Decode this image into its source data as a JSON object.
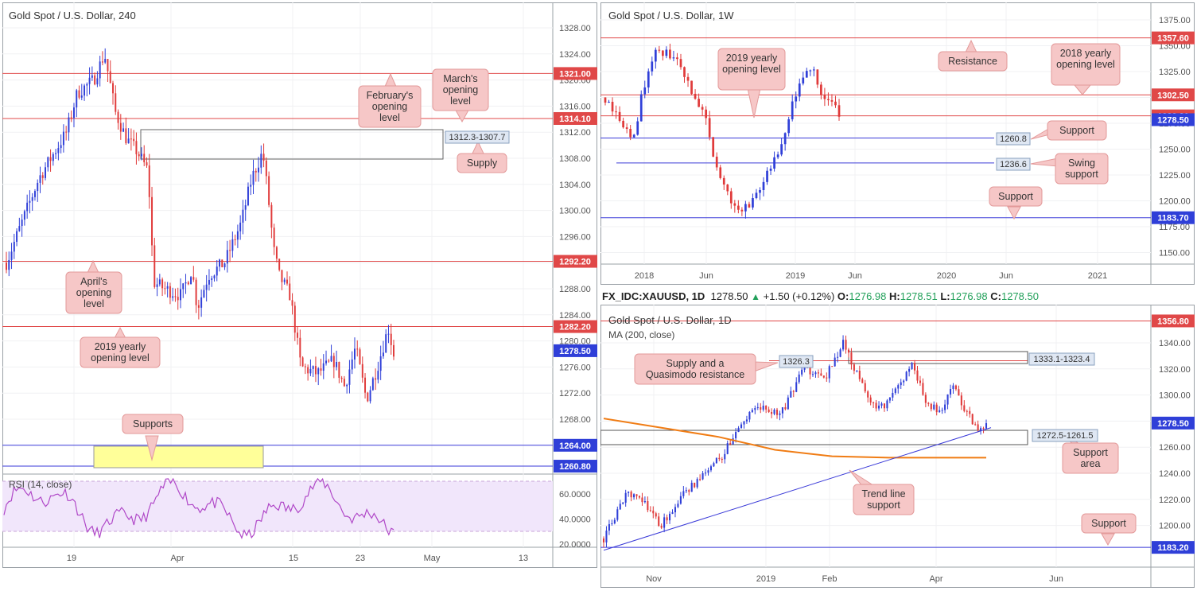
{
  "colors": {
    "red_level": "#e04848",
    "blue_level": "#3a3ad8",
    "bull": "#2f3fd8",
    "bear": "#e03a3a",
    "callout_fill": "#f6c7c7",
    "callout_border": "#e39a9a",
    "price_tag": "#2f3fd8",
    "ma": "#f07c14",
    "supports_fill": "#ffff99",
    "rsi_fill": "#f1e6fb",
    "rsi_line": "#b048c8"
  },
  "panel_240": {
    "title": "Gold Spot / U.S. Dollar, 240",
    "y_ticks": [
      "1328.00",
      "1324.00",
      "1320.00",
      "1316.00",
      "1312.00",
      "1308.00",
      "1304.00",
      "1300.00",
      "1296.00",
      "1292.00",
      "1288.00",
      "1284.00",
      "1280.00",
      "1276.00",
      "1272.00",
      "1268.00"
    ],
    "x_ticks": [
      "19",
      "Apr",
      "15",
      "23",
      "May",
      "13"
    ],
    "price_tags": [
      {
        "label": "1321.00",
        "color": "#e04848"
      },
      {
        "label": "1314.10",
        "color": "#e04848"
      },
      {
        "label": "1292.20",
        "color": "#e04848"
      },
      {
        "label": "1282.20",
        "color": "#e04848"
      },
      {
        "label": "1278.50",
        "color": "#2f3fd8"
      },
      {
        "label": "1264.00",
        "color": "#2f3fd8"
      },
      {
        "label": "1260.80",
        "color": "#2f3fd8"
      }
    ],
    "zone_label": "1312.3-1307.7",
    "callouts": {
      "february": "February's opening level",
      "march": "March's opening level",
      "supply": "Supply",
      "april": "April's opening level",
      "yearly": "2019 yearly opening level",
      "supports": "Supports"
    },
    "rsi": {
      "title": "RSI (14, close)",
      "y_ticks": [
        "60.0000",
        "40.0000",
        "20.0000"
      ]
    }
  },
  "panel_1w": {
    "title": "Gold Spot / U.S. Dollar, 1W",
    "y_ticks": [
      "1375.00",
      "1350.00",
      "1325.00",
      "1300.00",
      "1275.00",
      "1250.00",
      "1225.00",
      "1200.00",
      "1175.00",
      "1150.00"
    ],
    "x_ticks": [
      "2018",
      "Jun",
      "2019",
      "Jun",
      "2020",
      "Jun",
      "2021"
    ],
    "price_tags": [
      {
        "label": "1357.60",
        "color": "#e04848"
      },
      {
        "label": "1302.50",
        "color": "#e04848"
      },
      {
        "label": "1282.20",
        "color": "#e04848"
      },
      {
        "label": "1278.50",
        "color": "#2f3fd8"
      },
      {
        "label": "1183.70",
        "color": "#2f3fd8"
      }
    ],
    "level_labels": [
      "1260.8",
      "1236.6"
    ],
    "callouts": {
      "yearly2019": "2019 yearly opening level",
      "resistance": "Resistance",
      "yearly2018": "2018 yearly opening level",
      "support1": "Support",
      "swing": "Swing support",
      "support2": "Support"
    }
  },
  "ticker": {
    "symbol": "FX_IDC:XAUUSD, 1D",
    "price": "1278.50",
    "change": "+1.50 (+0.12%)",
    "o_label": "O:",
    "o": "1276.98",
    "h_label": "H:",
    "h": "1278.51",
    "l_label": "L:",
    "l": "1276.98",
    "c_label": "C:",
    "c": "1278.50"
  },
  "panel_1d": {
    "title": "Gold Spot / U.S. Dollar, 1D",
    "ma_label": "MA (200, close)",
    "y_ticks": [
      "1340.00",
      "1320.00",
      "1300.00",
      "1280.00",
      "1260.00",
      "1240.00",
      "1220.00",
      "1200.00"
    ],
    "x_ticks": [
      "Nov",
      "2019",
      "Feb",
      "Apr",
      "Jun"
    ],
    "price_tags": [
      {
        "label": "1356.80",
        "color": "#e04848"
      },
      {
        "label": "1278.50",
        "color": "#2f3fd8"
      },
      {
        "label": "1183.20",
        "color": "#2f3fd8"
      }
    ],
    "level_labels": [
      "1326.3",
      "1333.1-1323.4",
      "1272.5-1261.5"
    ],
    "callouts": {
      "supply": "Supply and a Quasimodo resistance",
      "support_area": "Support area",
      "trendline": "Trend line support",
      "support": "Support"
    }
  },
  "chart_data": [
    {
      "type": "candlestick",
      "title": "Gold Spot / U.S. Dollar, 240",
      "ylim": [
        1262,
        1330
      ],
      "levels": {
        "resistance": [
          1321.0,
          1314.1,
          1292.2,
          1282.2
        ],
        "support": [
          1264.0,
          1260.8
        ],
        "last": 1278.5
      },
      "supply_zone": [
        1312.3,
        1307.7
      ],
      "path": [
        [
          0,
          1292
        ],
        [
          6,
          1305
        ],
        [
          11,
          1312
        ],
        [
          13,
          1318
        ],
        [
          16,
          1320
        ],
        [
          18,
          1324
        ],
        [
          20,
          1315
        ],
        [
          22,
          1311
        ],
        [
          24,
          1309
        ],
        [
          26,
          1306
        ],
        [
          27,
          1289
        ],
        [
          29,
          1288
        ],
        [
          32,
          1287
        ],
        [
          34,
          1291
        ],
        [
          35,
          1285
        ],
        [
          37,
          1290
        ],
        [
          40,
          1292
        ],
        [
          43,
          1298
        ],
        [
          45,
          1305
        ],
        [
          47,
          1309
        ],
        [
          48,
          1302
        ],
        [
          49,
          1294
        ],
        [
          50,
          1290
        ],
        [
          52,
          1287
        ],
        [
          54,
          1276
        ],
        [
          57,
          1275
        ],
        [
          60,
          1277
        ],
        [
          62,
          1273
        ],
        [
          64,
          1279
        ],
        [
          66,
          1271
        ],
        [
          68,
          1276
        ],
        [
          70,
          1282
        ],
        [
          71,
          1278
        ]
      ],
      "rsi": {
        "ylim": [
          20,
          70
        ],
        "bands": [
          30,
          70
        ]
      }
    },
    {
      "type": "candlestick",
      "title": "Gold Spot / U.S. Dollar, 1W",
      "ylim": [
        1140,
        1385
      ],
      "levels": {
        "resistance": [
          1357.6,
          1302.5,
          1282.2
        ],
        "support": [
          1260.8,
          1236.6,
          1183.7
        ],
        "last": 1278.5
      },
      "path": [
        [
          0,
          1300
        ],
        [
          4,
          1280
        ],
        [
          7,
          1255
        ],
        [
          10,
          1310
        ],
        [
          13,
          1345
        ],
        [
          17,
          1340
        ],
        [
          20,
          1330
        ],
        [
          23,
          1300
        ],
        [
          26,
          1280
        ],
        [
          29,
          1230
        ],
        [
          33,
          1200
        ],
        [
          36,
          1190
        ],
        [
          40,
          1210
        ],
        [
          43,
          1230
        ],
        [
          46,
          1250
        ],
        [
          49,
          1295
        ],
        [
          52,
          1320
        ],
        [
          54,
          1330
        ],
        [
          57,
          1300
        ],
        [
          60,
          1290
        ],
        [
          61,
          1280
        ]
      ]
    },
    {
      "type": "candlestick",
      "title": "Gold Spot / U.S. Dollar, 1D",
      "ylim": [
        1180,
        1360
      ],
      "levels": {
        "resistance": [
          1356.8
        ],
        "support": [
          1183.2
        ],
        "last": 1278.5
      },
      "zones": [
        [
          1333.1,
          1323.4
        ],
        [
          1272.5,
          1261.5
        ]
      ],
      "qm_level": 1326.3,
      "path": [
        [
          0,
          1190
        ],
        [
          8,
          1225
        ],
        [
          15,
          1215
        ],
        [
          20,
          1200
        ],
        [
          28,
          1225
        ],
        [
          36,
          1240
        ],
        [
          42,
          1255
        ],
        [
          48,
          1280
        ],
        [
          55,
          1290
        ],
        [
          62,
          1285
        ],
        [
          70,
          1320
        ],
        [
          78,
          1315
        ],
        [
          84,
          1340
        ],
        [
          88,
          1320
        ],
        [
          93,
          1295
        ],
        [
          98,
          1290
        ],
        [
          103,
          1305
        ],
        [
          108,
          1325
        ],
        [
          113,
          1295
        ],
        [
          118,
          1285
        ],
        [
          123,
          1310
        ],
        [
          126,
          1290
        ],
        [
          131,
          1275
        ],
        [
          134,
          1278
        ]
      ],
      "ma200": [
        [
          0,
          1282
        ],
        [
          20,
          1275
        ],
        [
          40,
          1268
        ],
        [
          60,
          1258
        ],
        [
          80,
          1253
        ],
        [
          100,
          1252
        ],
        [
          134,
          1252
        ]
      ],
      "trendline": [
        [
          0,
          1181
        ],
        [
          134,
          1275
        ]
      ]
    }
  ]
}
